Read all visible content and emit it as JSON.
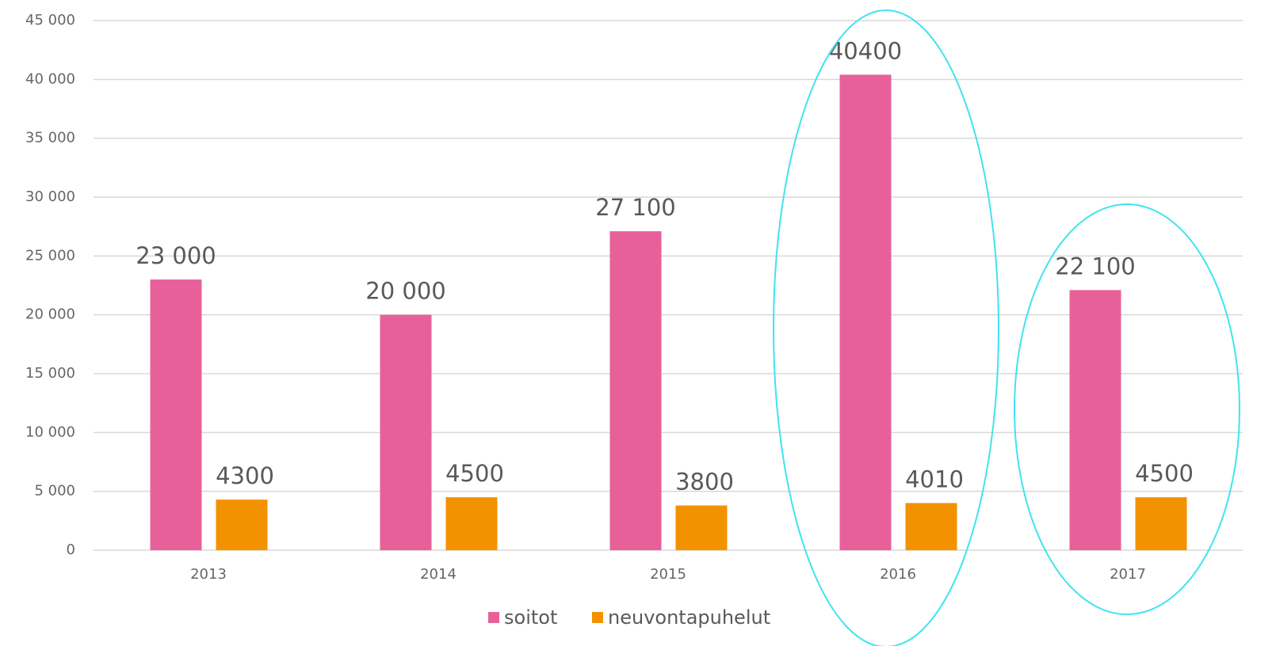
{
  "chart_data": {
    "type": "bar",
    "categories": [
      "2013",
      "2014",
      "2015",
      "2016",
      "2017"
    ],
    "series": [
      {
        "name": "soitot",
        "color": "#e8609a",
        "values": [
          23000,
          20000,
          27100,
          40400,
          22100
        ],
        "value_labels": [
          "23 000",
          "20 000",
          "27 100",
          "40400",
          "22 100"
        ]
      },
      {
        "name": "neuvontapuhelut",
        "color": "#f39200",
        "values": [
          4300,
          4500,
          3800,
          4010,
          4500
        ],
        "value_labels": [
          "4300",
          "4500",
          "3800",
          "4010",
          "4500"
        ]
      }
    ],
    "ylim": [
      0,
      45000
    ],
    "yticks": [
      0,
      {
        "value": 5000,
        "label": "5 000"
      },
      {
        "value": 10000,
        "label": "10 000"
      },
      {
        "value": 15000,
        "label": "15 000"
      },
      {
        "value": 20000,
        "label": "20 000"
      },
      {
        "value": 25000,
        "label": "25 000"
      },
      {
        "value": 30000,
        "label": "30 000"
      },
      {
        "value": 35000,
        "label": "35 000"
      },
      {
        "value": 40000,
        "label": "40 000"
      },
      {
        "value": 45000,
        "label": "45 000"
      }
    ],
    "grid": true,
    "legend": "bottom"
  }
}
